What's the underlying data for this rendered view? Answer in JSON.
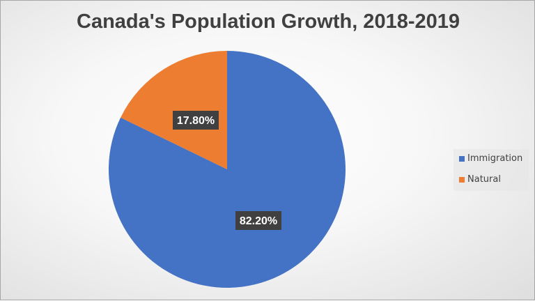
{
  "chart_data": {
    "type": "pie",
    "title": "Canada's Population Growth, 2018-2019",
    "slices": [
      {
        "name": "Immigration",
        "value": 82.2,
        "label": "82.20%",
        "color": "#4472C4"
      },
      {
        "name": "Natural",
        "value": 17.8,
        "label": "17.80%",
        "color": "#ED7D31"
      }
    ],
    "start_angle": "12 o'clock, clockwise",
    "legend_position": "right"
  }
}
